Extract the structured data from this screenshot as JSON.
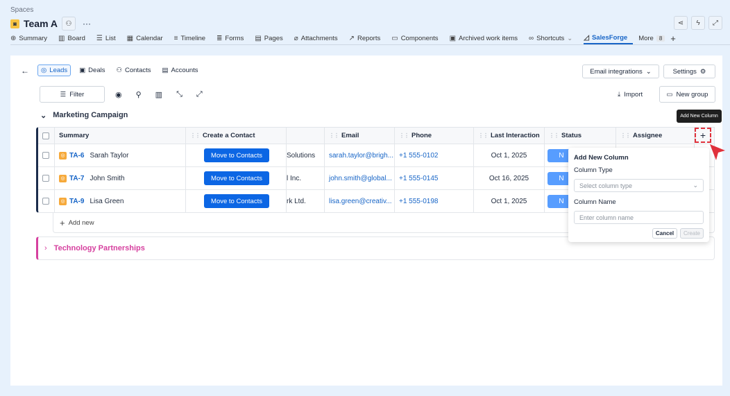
{
  "header": {
    "breadcrumb": "Spaces",
    "title": "Team A",
    "more": "···"
  },
  "tabs": [
    {
      "label": "Summary",
      "icon": "globe-icon",
      "glyph": "⊕"
    },
    {
      "label": "Board",
      "icon": "board-icon",
      "glyph": "▥"
    },
    {
      "label": "List",
      "icon": "list-icon",
      "glyph": "☰"
    },
    {
      "label": "Calendar",
      "icon": "calendar-icon",
      "glyph": "▦"
    },
    {
      "label": "Timeline",
      "icon": "timeline-icon",
      "glyph": "≡"
    },
    {
      "label": "Forms",
      "icon": "forms-icon",
      "glyph": "≣"
    },
    {
      "label": "Pages",
      "icon": "pages-icon",
      "glyph": "▤"
    },
    {
      "label": "Attachments",
      "icon": "paperclip-icon",
      "glyph": "⌀"
    },
    {
      "label": "Reports",
      "icon": "chart-icon",
      "glyph": "↗"
    },
    {
      "label": "Components",
      "icon": "components-icon",
      "glyph": "▭"
    },
    {
      "label": "Archived work items",
      "icon": "archive-icon",
      "glyph": "▣"
    },
    {
      "label": "Shortcuts",
      "icon": "link-icon",
      "glyph": "∞"
    },
    {
      "label": "SalesForge",
      "icon": "salesforge-icon",
      "glyph": "◿",
      "active": true
    }
  ],
  "more_tab": {
    "label": "More",
    "count": "8"
  },
  "subtabs": [
    {
      "label": "Leads",
      "glyph": "◎",
      "active": true
    },
    {
      "label": "Deals",
      "glyph": "▣"
    },
    {
      "label": "Contacts",
      "glyph": "⚇"
    },
    {
      "label": "Accounts",
      "glyph": "▤"
    }
  ],
  "toolbar": {
    "filter": "Filter",
    "email_integrations": "Email integrations",
    "settings": "Settings",
    "import": "Import",
    "new_group": "New group"
  },
  "groups": [
    {
      "name": "Marketing Campaign",
      "color": "#1b2c4b"
    },
    {
      "name": "Technology Partnerships",
      "color": "#d6409f"
    }
  ],
  "table": {
    "columns": [
      "Summary",
      "Create a Contact",
      "",
      "Email",
      "Phone",
      "Last Interaction",
      "Status",
      "Assignee"
    ],
    "rows": [
      {
        "key": "TA-6",
        "name": "Sarah Taylor",
        "action": "Move to Contacts",
        "company": "Solutions",
        "email": "sarah.taylor@brigh...",
        "phone": "+1 555-0102",
        "last": "Oct 1, 2025",
        "status": "N"
      },
      {
        "key": "TA-7",
        "name": "John Smith",
        "action": "Move to Contacts",
        "company": "l Inc.",
        "email": "john.smith@global...",
        "phone": "+1 555-0145",
        "last": "Oct 16, 2025",
        "status": "N"
      },
      {
        "key": "TA-9",
        "name": "Lisa Green",
        "action": "Move to Contacts",
        "company": "rk Ltd.",
        "email": "lisa.green@creativ...",
        "phone": "+1 555-0198",
        "last": "Oct 1, 2025",
        "status": "N"
      }
    ],
    "add_new": "Add new"
  },
  "tooltip": "Add New Column",
  "popover": {
    "title": "Add New Column",
    "type_label": "Column Type",
    "type_placeholder": "Select column type",
    "name_label": "Column Name",
    "name_placeholder": "Enter column name",
    "cancel": "Cancel",
    "create": "Create"
  }
}
